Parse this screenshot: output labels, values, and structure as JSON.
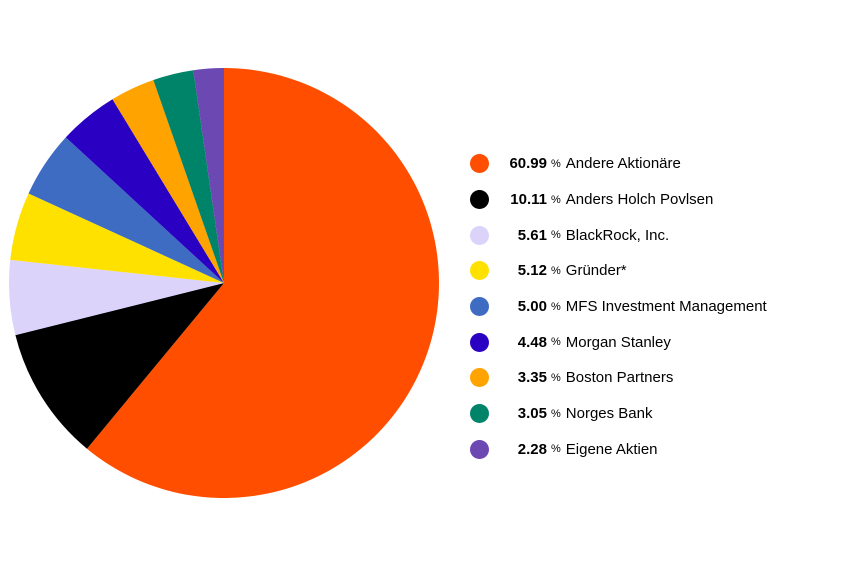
{
  "chart_data": {
    "type": "pie",
    "percent_symbol": "%",
    "slices": [
      {
        "label": "Andere Aktionäre",
        "value": 60.99,
        "value_text": "60.99",
        "color": "#ff4e00"
      },
      {
        "label": "Anders Holch Povlsen",
        "value": 10.11,
        "value_text": "10.11",
        "color": "#000000"
      },
      {
        "label": "BlackRock, Inc.",
        "value": 5.61,
        "value_text": "5.61",
        "color": "#dcd3fb"
      },
      {
        "label": "Gründer*",
        "value": 5.12,
        "value_text": "5.12",
        "color": "#ffe100"
      },
      {
        "label": "MFS Investment Management",
        "value": 5.0,
        "value_text": "5.00",
        "color": "#3e6cc3"
      },
      {
        "label": "Morgan Stanley",
        "value": 4.48,
        "value_text": "4.48",
        "color": "#2a00c3"
      },
      {
        "label": "Boston Partners",
        "value": 3.35,
        "value_text": "3.35",
        "color": "#ffa300"
      },
      {
        "label": "Norges Bank",
        "value": 3.05,
        "value_text": "3.05",
        "color": "#008469"
      },
      {
        "label": "Eigene Aktien",
        "value": 2.28,
        "value_text": "2.28",
        "color": "#6b48b2"
      }
    ],
    "start_angle": "top",
    "direction": "clockwise",
    "legend_position": "right"
  }
}
